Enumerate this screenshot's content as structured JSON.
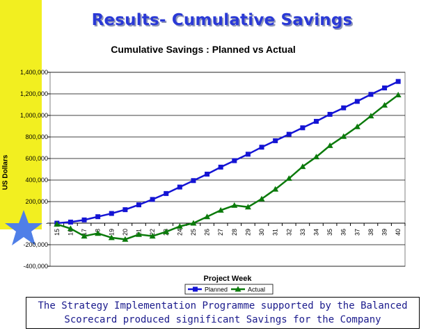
{
  "slide": {
    "title": "Results- Cumulative Savings",
    "caption_line1": "The Strategy Implementation Programme supported by the Balanced",
    "caption_line2": "Scorecard produced significant Savings for the Company"
  },
  "colors": {
    "left_bar": "#f2ef20",
    "star": "#4f7fe8",
    "title": "#2a39d6",
    "planned": "#1414d4",
    "actual": "#0b7a0b",
    "caption_text": "#1a1a8c"
  },
  "chart_data": {
    "type": "line",
    "title": "Cumulative Savings : Planned vs Actual",
    "xlabel": "Project Week",
    "ylabel": "US Dollars",
    "x": [
      "15",
      "16",
      "17",
      "18",
      "19",
      "20",
      "21",
      "22",
      "23",
      "24",
      "25",
      "26",
      "27",
      "28",
      "29",
      "30",
      "31",
      "32",
      "33",
      "34",
      "35",
      "36",
      "37",
      "38",
      "39",
      "40"
    ],
    "ylim": [
      -400000,
      1400000
    ],
    "yticks": [
      {
        "value": 1400000,
        "label": "1,400,000"
      },
      {
        "value": 1200000,
        "label": "1,200,000"
      },
      {
        "value": 1000000,
        "label": "1,000,000"
      },
      {
        "value": 800000,
        "label": "800,000"
      },
      {
        "value": 600000,
        "label": "600,000"
      },
      {
        "value": 400000,
        "label": "400,000"
      },
      {
        "value": 200000,
        "label": "200,000"
      },
      {
        "value": 0,
        "label": "-"
      },
      {
        "value": -200000,
        "label": "-200,000"
      },
      {
        "value": -400000,
        "label": "-400,000"
      }
    ],
    "grid": true,
    "legend": "bottom",
    "series": [
      {
        "name": "Planned",
        "marker": "square",
        "values": [
          0,
          10000,
          30000,
          60000,
          90000,
          125000,
          170000,
          220000,
          275000,
          335000,
          395000,
          455000,
          520000,
          580000,
          640000,
          705000,
          765000,
          825000,
          885000,
          945000,
          1010000,
          1070000,
          1130000,
          1195000,
          1255000,
          1315000
        ]
      },
      {
        "name": "Actual",
        "marker": "triangle",
        "values": [
          -10000,
          -50000,
          -120000,
          -95000,
          -135000,
          -150000,
          -105000,
          -120000,
          -80000,
          -30000,
          0,
          60000,
          120000,
          165000,
          150000,
          225000,
          315000,
          415000,
          525000,
          615000,
          720000,
          805000,
          895000,
          995000,
          1095000,
          1190000
        ]
      }
    ]
  }
}
